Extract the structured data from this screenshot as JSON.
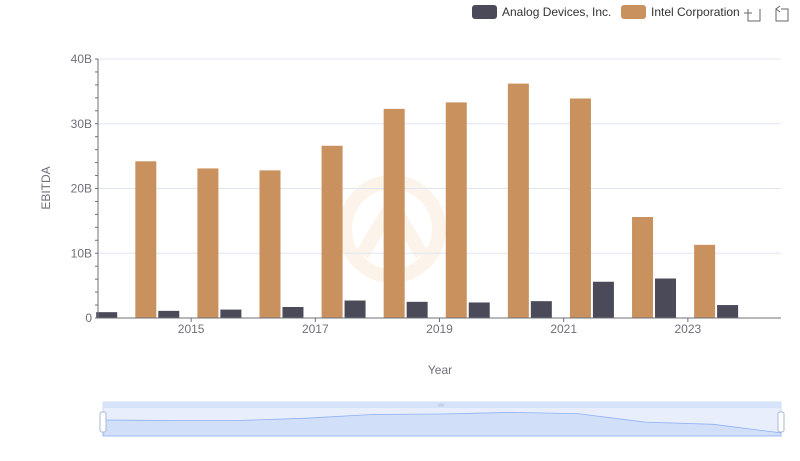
{
  "legend": {
    "items": [
      {
        "label": "Analog Devices, Inc.",
        "color": "#4a4a58"
      },
      {
        "label": "Intel Corporation",
        "color": "#c9915e"
      }
    ]
  },
  "toolbox": {
    "icons": [
      "zoom-icon",
      "restore-icon"
    ]
  },
  "chart_data": {
    "type": "bar",
    "categories": [
      "2014",
      "2015",
      "2016",
      "2017",
      "2018",
      "2019",
      "2020",
      "2021",
      "2022",
      "2023",
      "2024"
    ],
    "x_tick_labels": [
      "2015",
      "2017",
      "2019",
      "2021",
      "2023"
    ],
    "series": [
      {
        "name": "Analog Devices, Inc.",
        "color": "#4a4a58",
        "values": [
          0.9,
          1.1,
          1.3,
          1.7,
          2.7,
          2.5,
          2.4,
          2.6,
          5.6,
          6.1,
          2.0
        ]
      },
      {
        "name": "Intel Corporation",
        "color": "#c9915e",
        "values": [
          24.2,
          23.1,
          22.8,
          26.6,
          32.3,
          33.3,
          36.2,
          33.9,
          15.6,
          11.3,
          null
        ]
      }
    ],
    "y_ticks": [
      "0",
      "10B",
      "20B",
      "30B",
      "40B"
    ],
    "ylim": [
      0,
      40
    ],
    "ylabel": "EBITDA",
    "xlabel": "Year",
    "grid": true,
    "legend_position": "top-right",
    "data_zoom": true
  }
}
